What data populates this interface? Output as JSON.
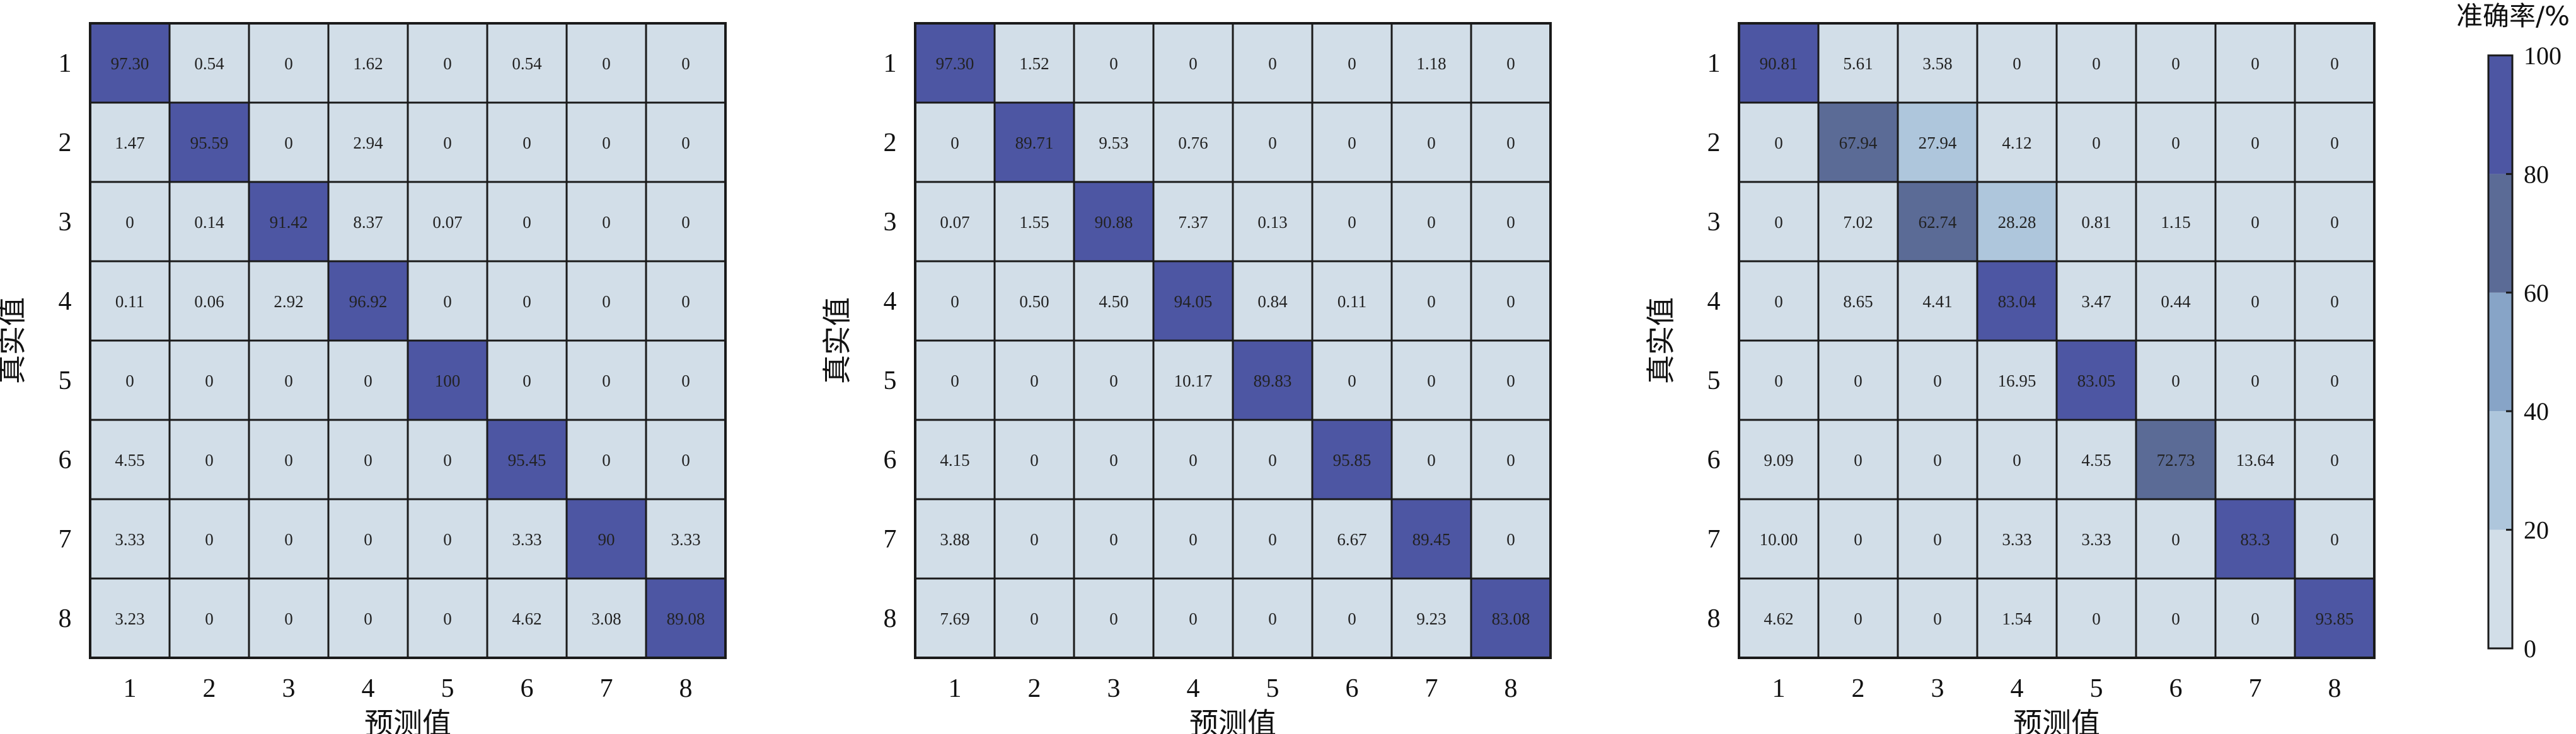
{
  "chart_data": [
    {
      "type": "heatmap",
      "xlabel": "预测值",
      "ylabel": "真实值",
      "x_categories": [
        "1",
        "2",
        "3",
        "4",
        "5",
        "6",
        "7",
        "8"
      ],
      "y_categories": [
        "1",
        "2",
        "3",
        "4",
        "5",
        "6",
        "7",
        "8"
      ],
      "cell_labels": [
        [
          "97.30",
          "0.54",
          "0",
          "1.62",
          "0",
          "0.54",
          "0",
          "0"
        ],
        [
          "1.47",
          "95.59",
          "0",
          "2.94",
          "0",
          "0",
          "0",
          "0"
        ],
        [
          "0",
          "0.14",
          "91.42",
          "8.37",
          "0.07",
          "0",
          "0",
          "0"
        ],
        [
          "0.11",
          "0.06",
          "2.92",
          "96.92",
          "0",
          "0",
          "0",
          "0"
        ],
        [
          "0",
          "0",
          "0",
          "0",
          "100",
          "0",
          "0",
          "0"
        ],
        [
          "4.55",
          "0",
          "0",
          "0",
          "0",
          "95.45",
          "0",
          "0"
        ],
        [
          "3.33",
          "0",
          "0",
          "0",
          "0",
          "3.33",
          "90",
          "3.33"
        ],
        [
          "3.23",
          "0",
          "0",
          "0",
          "0",
          "4.62",
          "3.08",
          "89.08"
        ]
      ]
    },
    {
      "type": "heatmap",
      "xlabel": "预测值",
      "ylabel": "真实值",
      "x_categories": [
        "1",
        "2",
        "3",
        "4",
        "5",
        "6",
        "7",
        "8"
      ],
      "y_categories": [
        "1",
        "2",
        "3",
        "4",
        "5",
        "6",
        "7",
        "8"
      ],
      "cell_labels": [
        [
          "97.30",
          "1.52",
          "0",
          "0",
          "0",
          "0",
          "1.18",
          "0"
        ],
        [
          "0",
          "89.71",
          "9.53",
          "0.76",
          "0",
          "0",
          "0",
          "0"
        ],
        [
          "0.07",
          "1.55",
          "90.88",
          "7.37",
          "0.13",
          "0",
          "0",
          "0"
        ],
        [
          "0",
          "0.50",
          "4.50",
          "94.05",
          "0.84",
          "0.11",
          "0",
          "0"
        ],
        [
          "0",
          "0",
          "0",
          "10.17",
          "89.83",
          "0",
          "0",
          "0"
        ],
        [
          "4.15",
          "0",
          "0",
          "0",
          "0",
          "95.85",
          "0",
          "0"
        ],
        [
          "3.88",
          "0",
          "0",
          "0",
          "0",
          "6.67",
          "89.45",
          "0"
        ],
        [
          "7.69",
          "0",
          "0",
          "0",
          "0",
          "0",
          "9.23",
          "83.08"
        ]
      ]
    },
    {
      "type": "heatmap",
      "xlabel": "预测值",
      "ylabel": "真实值",
      "x_categories": [
        "1",
        "2",
        "3",
        "4",
        "5",
        "6",
        "7",
        "8"
      ],
      "y_categories": [
        "1",
        "2",
        "3",
        "4",
        "5",
        "6",
        "7",
        "8"
      ],
      "cell_labels": [
        [
          "90.81",
          "5.61",
          "3.58",
          "0",
          "0",
          "0",
          "0",
          "0"
        ],
        [
          "0",
          "67.94",
          "27.94",
          "4.12",
          "0",
          "0",
          "0",
          "0"
        ],
        [
          "0",
          "7.02",
          "62.74",
          "28.28",
          "0.81",
          "1.15",
          "0",
          "0"
        ],
        [
          "0",
          "8.65",
          "4.41",
          "83.04",
          "3.47",
          "0.44",
          "0",
          "0"
        ],
        [
          "0",
          "0",
          "0",
          "16.95",
          "83.05",
          "0",
          "0",
          "0"
        ],
        [
          "9.09",
          "0",
          "0",
          "0",
          "4.55",
          "72.73",
          "13.64",
          "0"
        ],
        [
          "10.00",
          "0",
          "0",
          "3.33",
          "3.33",
          "0",
          "83.3",
          "0"
        ],
        [
          "4.62",
          "0",
          "0",
          "1.54",
          "0",
          "0",
          "0",
          "93.85"
        ]
      ]
    }
  ],
  "colorbar": {
    "title": "准确率/%",
    "range": [
      0,
      100
    ],
    "ticks": [
      "0",
      "20",
      "40",
      "60",
      "80",
      "100"
    ],
    "bins": [
      {
        "from": 0,
        "to": 20,
        "color": "#d2dee8"
      },
      {
        "from": 20,
        "to": 40,
        "color": "#aec6dc"
      },
      {
        "from": 40,
        "to": 60,
        "color": "#87a4c7"
      },
      {
        "from": 60,
        "to": 80,
        "color": "#5b6b96"
      },
      {
        "from": 80,
        "to": 100,
        "color": "#4d56a3"
      }
    ]
  }
}
